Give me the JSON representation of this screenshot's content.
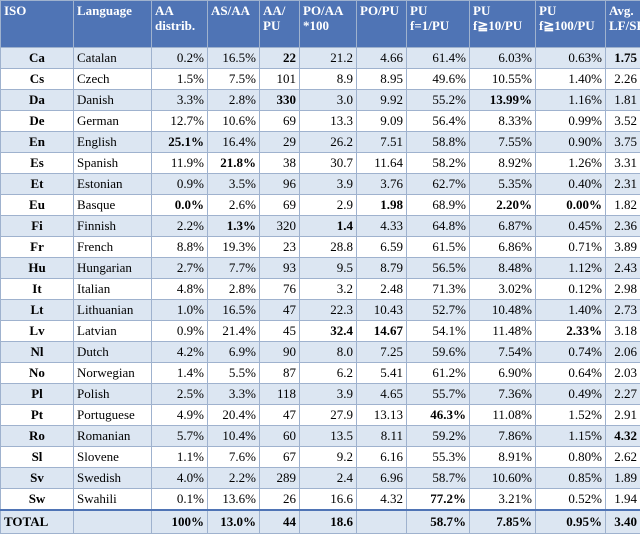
{
  "columns": [
    {
      "line1": "ISO",
      "line2": ""
    },
    {
      "line1": "Language",
      "line2": ""
    },
    {
      "line1": "AA",
      "line2": "distrib."
    },
    {
      "line1": "AS/AA",
      "line2": ""
    },
    {
      "line1": "AA/",
      "line2": "PU"
    },
    {
      "line1": "PO/AA",
      "line2": "*100"
    },
    {
      "line1": "PO/PU",
      "line2": ""
    },
    {
      "line1": "PU",
      "line2": "f=1/PU"
    },
    {
      "line1": "PU",
      "line2": "f≧10/PU"
    },
    {
      "line1": "PU",
      "line2": "f≧100/PU"
    },
    {
      "line1": "Avg.",
      "line2": "LF/SF"
    }
  ],
  "rows": [
    {
      "iso": "Ca",
      "lang": "Catalan",
      "vals": [
        "0.2%",
        "16.5%",
        "22",
        "21.2",
        "4.66",
        "61.4%",
        "6.03%",
        "0.63%",
        "1.75"
      ],
      "bold": [
        2,
        8
      ]
    },
    {
      "iso": "Cs",
      "lang": "Czech",
      "vals": [
        "1.5%",
        "7.5%",
        "101",
        "8.9",
        "8.95",
        "49.6%",
        "10.55%",
        "1.40%",
        "2.26"
      ],
      "bold": []
    },
    {
      "iso": "Da",
      "lang": "Danish",
      "vals": [
        "3.3%",
        "2.8%",
        "330",
        "3.0",
        "9.92",
        "55.2%",
        "13.99%",
        "1.16%",
        "1.81"
      ],
      "bold": [
        2,
        6
      ]
    },
    {
      "iso": "De",
      "lang": "German",
      "vals": [
        "12.7%",
        "10.6%",
        "69",
        "13.3",
        "9.09",
        "56.4%",
        "8.33%",
        "0.99%",
        "3.52"
      ],
      "bold": []
    },
    {
      "iso": "En",
      "lang": "English",
      "vals": [
        "25.1%",
        "16.4%",
        "29",
        "26.2",
        "7.51",
        "58.8%",
        "7.55%",
        "0.90%",
        "3.75"
      ],
      "bold": [
        0
      ]
    },
    {
      "iso": "Es",
      "lang": "Spanish",
      "vals": [
        "11.9%",
        "21.8%",
        "38",
        "30.7",
        "11.64",
        "58.2%",
        "8.92%",
        "1.26%",
        "3.31"
      ],
      "bold": [
        1
      ]
    },
    {
      "iso": "Et",
      "lang": "Estonian",
      "vals": [
        "0.9%",
        "3.5%",
        "96",
        "3.9",
        "3.76",
        "62.7%",
        "5.35%",
        "0.40%",
        "2.31"
      ],
      "bold": []
    },
    {
      "iso": "Eu",
      "lang": "Basque",
      "vals": [
        "0.0%",
        "2.6%",
        "69",
        "2.9",
        "1.98",
        "68.9%",
        "2.20%",
        "0.00%",
        "1.82"
      ],
      "bold": [
        0,
        4,
        6,
        7
      ]
    },
    {
      "iso": "Fi",
      "lang": "Finnish",
      "vals": [
        "2.2%",
        "1.3%",
        "320",
        "1.4",
        "4.33",
        "64.8%",
        "6.87%",
        "0.45%",
        "2.36"
      ],
      "bold": [
        1,
        3
      ]
    },
    {
      "iso": "Fr",
      "lang": "French",
      "vals": [
        "8.8%",
        "19.3%",
        "23",
        "28.8",
        "6.59",
        "61.5%",
        "6.86%",
        "0.71%",
        "3.89"
      ],
      "bold": []
    },
    {
      "iso": "Hu",
      "lang": "Hungarian",
      "vals": [
        "2.7%",
        "7.7%",
        "93",
        "9.5",
        "8.79",
        "56.5%",
        "8.48%",
        "1.12%",
        "2.43"
      ],
      "bold": []
    },
    {
      "iso": "It",
      "lang": "Italian",
      "vals": [
        "4.8%",
        "2.8%",
        "76",
        "3.2",
        "2.48",
        "71.3%",
        "3.02%",
        "0.12%",
        "2.98"
      ],
      "bold": []
    },
    {
      "iso": "Lt",
      "lang": "Lithuanian",
      "vals": [
        "1.0%",
        "16.5%",
        "47",
        "22.3",
        "10.43",
        "52.7%",
        "10.48%",
        "1.40%",
        "2.73"
      ],
      "bold": []
    },
    {
      "iso": "Lv",
      "lang": "Latvian",
      "vals": [
        "0.9%",
        "21.4%",
        "45",
        "32.4",
        "14.67",
        "54.1%",
        "11.48%",
        "2.33%",
        "3.18"
      ],
      "bold": [
        3,
        4,
        7
      ]
    },
    {
      "iso": "Nl",
      "lang": "Dutch",
      "vals": [
        "4.2%",
        "6.9%",
        "90",
        "8.0",
        "7.25",
        "59.6%",
        "7.54%",
        "0.74%",
        "2.06"
      ],
      "bold": []
    },
    {
      "iso": "No",
      "lang": "Norwegian",
      "vals": [
        "1.4%",
        "5.5%",
        "87",
        "6.2",
        "5.41",
        "61.2%",
        "6.90%",
        "0.64%",
        "2.03"
      ],
      "bold": []
    },
    {
      "iso": "Pl",
      "lang": "Polish",
      "vals": [
        "2.5%",
        "3.3%",
        "118",
        "3.9",
        "4.65",
        "55.7%",
        "7.36%",
        "0.49%",
        "2.27"
      ],
      "bold": []
    },
    {
      "iso": "Pt",
      "lang": "Portuguese",
      "vals": [
        "4.9%",
        "20.4%",
        "47",
        "27.9",
        "13.13",
        "46.3%",
        "11.08%",
        "1.52%",
        "2.91"
      ],
      "bold": [
        5
      ]
    },
    {
      "iso": "Ro",
      "lang": "Romanian",
      "vals": [
        "5.7%",
        "10.4%",
        "60",
        "13.5",
        "8.11",
        "59.2%",
        "7.86%",
        "1.15%",
        "4.32"
      ],
      "bold": [
        8
      ]
    },
    {
      "iso": "Sl",
      "lang": "Slovene",
      "vals": [
        "1.1%",
        "7.6%",
        "67",
        "9.2",
        "6.16",
        "55.3%",
        "8.91%",
        "0.80%",
        "2.62"
      ],
      "bold": []
    },
    {
      "iso": "Sv",
      "lang": "Swedish",
      "vals": [
        "4.0%",
        "2.2%",
        "289",
        "2.4",
        "6.96",
        "58.7%",
        "10.60%",
        "0.85%",
        "1.89"
      ],
      "bold": []
    },
    {
      "iso": "Sw",
      "lang": "Swahili",
      "vals": [
        "0.1%",
        "13.6%",
        "26",
        "16.6",
        "4.32",
        "77.2%",
        "3.21%",
        "0.52%",
        "1.94"
      ],
      "bold": [
        5
      ]
    }
  ],
  "total": {
    "label": "TOTAL",
    "lang": "",
    "vals": [
      "100%",
      "13.0%",
      "44",
      "18.6",
      "",
      "58.7%",
      "7.85%",
      "0.95%",
      "3.40"
    ]
  },
  "colors": {
    "header_bg": "#4f74b5",
    "row_band": "#dce6f2",
    "grid": "#9fb2ce"
  }
}
